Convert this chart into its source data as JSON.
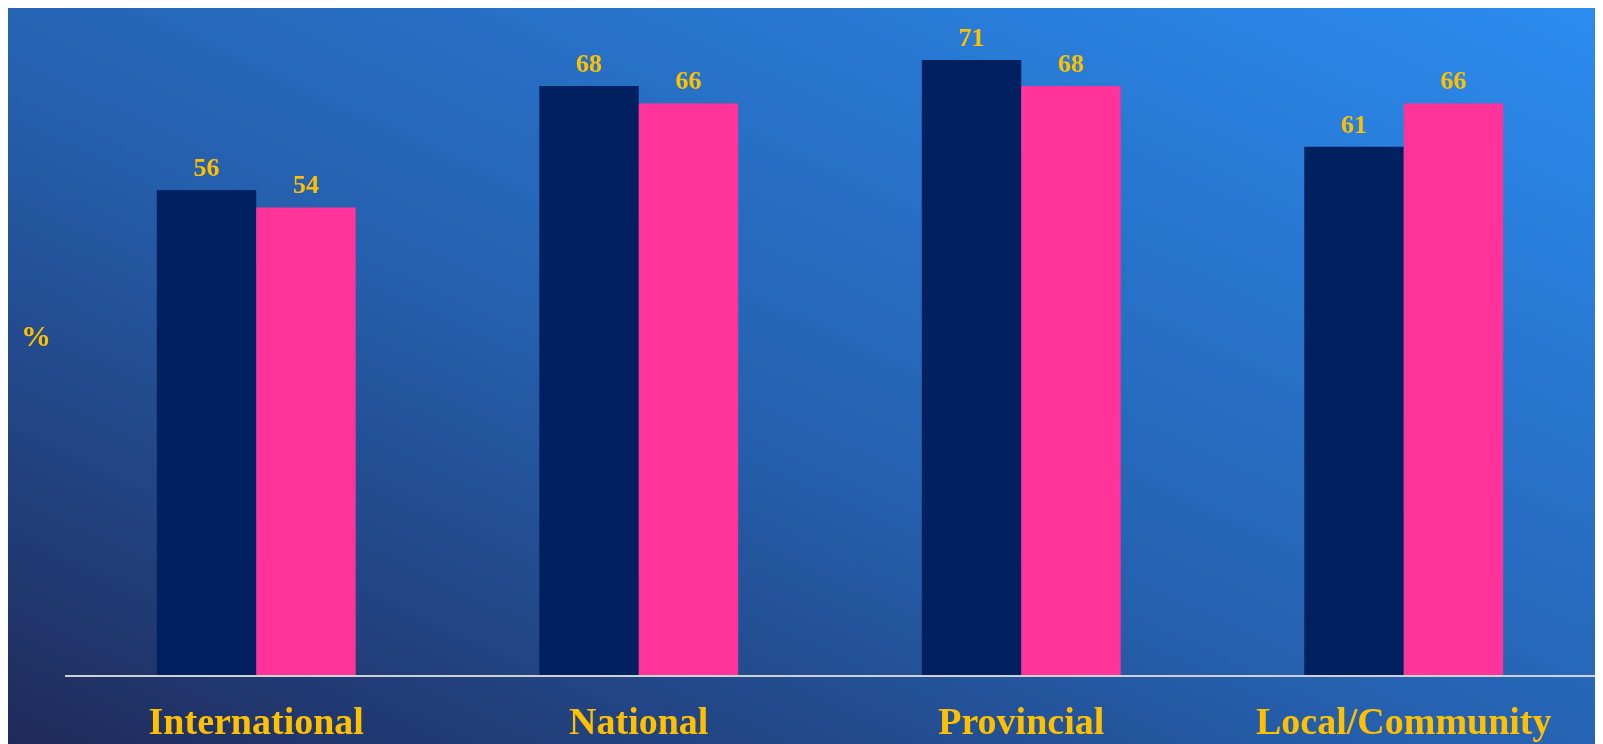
{
  "chart_data": {
    "type": "bar",
    "ylabel": "%",
    "categories": [
      "International",
      "National",
      "Provincial",
      "Local/Community"
    ],
    "series": [
      {
        "color": "#002060",
        "values": [
          56,
          68,
          71,
          61
        ]
      },
      {
        "color": "#ff3399",
        "values": [
          54,
          66,
          68,
          66
        ]
      }
    ],
    "data_labels": true
  }
}
